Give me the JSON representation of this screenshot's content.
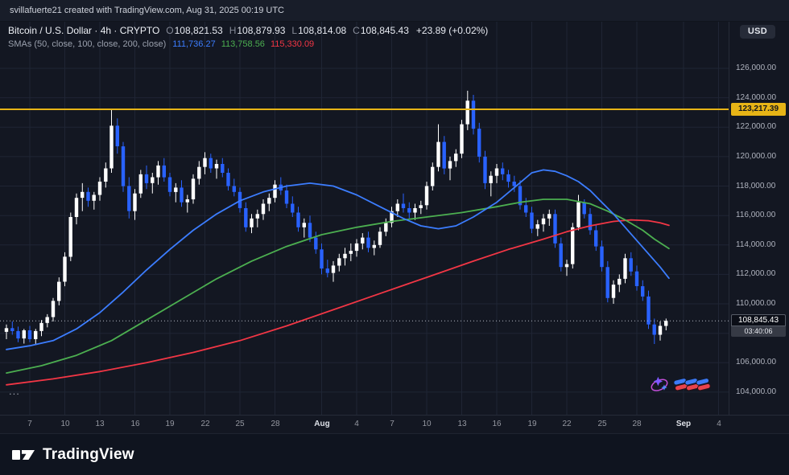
{
  "attribution": {
    "text": "svillafuerte21 created with TradingView.com, Aug 31, 2025 00:19 UTC"
  },
  "symbol_bar": {
    "title": "Bitcoin / U.S. Dollar · 4h · CRYPTO",
    "o_label": "O",
    "o_value": "108,821.53",
    "h_label": "H",
    "h_value": "108,879.93",
    "l_label": "L",
    "l_value": "108,814.08",
    "c_label": "C",
    "c_value": "108,845.43",
    "change": "+23.89 (+0.02%)",
    "currency_button": "USD"
  },
  "indicator_bar": {
    "label": "SMAs (50, close, 100, close, 200, close)",
    "sma50_value": "111,736.27",
    "sma100_value": "113,758.56",
    "sma200_value": "115,330.09"
  },
  "price_line": {
    "value": 123217.39,
    "label": "123,217.39",
    "color": "#e7b416"
  },
  "last_price": {
    "value": 108845.43,
    "label": "108,845.43",
    "countdown": "03:40:06"
  },
  "price_scale": {
    "grid_values": [
      126000,
      124000,
      122000,
      120000,
      118000,
      116000,
      114000,
      112000,
      110000,
      108000,
      106000,
      104000
    ],
    "labels": [
      {
        "text": "126,000.00",
        "value": 126000
      },
      {
        "text": "124,000.00",
        "value": 124000
      },
      {
        "text": "122,000.00",
        "value": 122000
      },
      {
        "text": "120,000.00",
        "value": 120000
      },
      {
        "text": "118,000.00",
        "value": 118000
      },
      {
        "text": "116,000.00",
        "value": 116000
      },
      {
        "text": "114,000.00",
        "value": 114000
      },
      {
        "text": "112,000.00",
        "value": 112000
      },
      {
        "text": "110,000.00",
        "value": 110000
      },
      {
        "text": "106,000.00",
        "value": 106000
      },
      {
        "text": "104,000.00",
        "value": 104000
      }
    ]
  },
  "time_scale": {
    "ticks": [
      {
        "label": "7",
        "idx": 4,
        "major": false
      },
      {
        "label": "10",
        "idx": 10,
        "major": false
      },
      {
        "label": "13",
        "idx": 16,
        "major": false
      },
      {
        "label": "16",
        "idx": 22,
        "major": false
      },
      {
        "label": "19",
        "idx": 28,
        "major": false
      },
      {
        "label": "22",
        "idx": 34,
        "major": false
      },
      {
        "label": "25",
        "idx": 40,
        "major": false
      },
      {
        "label": "28",
        "idx": 46,
        "major": false
      },
      {
        "label": "Aug",
        "idx": 54,
        "major": true
      },
      {
        "label": "4",
        "idx": 60,
        "major": false
      },
      {
        "label": "7",
        "idx": 66,
        "major": false
      },
      {
        "label": "10",
        "idx": 72,
        "major": false
      },
      {
        "label": "13",
        "idx": 78,
        "major": false
      },
      {
        "label": "16",
        "idx": 84,
        "major": false
      },
      {
        "label": "19",
        "idx": 90,
        "major": false
      },
      {
        "label": "22",
        "idx": 96,
        "major": false
      },
      {
        "label": "25",
        "idx": 102,
        "major": false
      },
      {
        "label": "28",
        "idx": 108,
        "major": false
      },
      {
        "label": "Sep",
        "idx": 116,
        "major": true
      },
      {
        "label": "4",
        "idx": 122,
        "major": false
      }
    ]
  },
  "misc": {
    "ellipsis": "...",
    "logo_text": "TradingView"
  },
  "chart_data": {
    "type": "candlestick",
    "symbol": "Bitcoin / U.S. Dollar (CRYPTO)",
    "interval": "4h",
    "note": "OHLC estimated from chart, sampled at 12h resolution, Jul 5 00:00 to Aug 31 00:00 2025 UTC",
    "y_domain": [
      102400,
      129100
    ],
    "key_levels": {
      "alert_line": 123217.39,
      "all_time_high_wick": 124474,
      "last_close": 108845.43,
      "period_low_wick": 107270
    },
    "colors": {
      "up": "#ffffff",
      "down": "#2962ff"
    },
    "candles": [
      [
        108100,
        108600,
        107600,
        108350
      ],
      [
        108350,
        108800,
        107900,
        108150
      ],
      [
        108150,
        108450,
        107400,
        107650
      ],
      [
        107650,
        108300,
        107300,
        108200
      ],
      [
        108200,
        108500,
        107400,
        107600
      ],
      [
        107600,
        108300,
        107250,
        108150
      ],
      [
        108150,
        108900,
        107800,
        108700
      ],
      [
        108700,
        109300,
        108400,
        109100
      ],
      [
        109100,
        110400,
        108800,
        110200
      ],
      [
        110200,
        111800,
        109900,
        111500
      ],
      [
        111500,
        113500,
        111200,
        113200
      ],
      [
        113200,
        116200,
        112900,
        115900
      ],
      [
        115900,
        117500,
        115400,
        117200
      ],
      [
        117200,
        118200,
        116300,
        117600
      ],
      [
        117600,
        117900,
        116600,
        117000
      ],
      [
        117000,
        117600,
        116400,
        117400
      ],
      [
        117400,
        118600,
        117000,
        118300
      ],
      [
        118300,
        119600,
        117900,
        119200
      ],
      [
        119200,
        123217,
        118900,
        122100
      ],
      [
        122100,
        122600,
        120200,
        120700
      ],
      [
        120700,
        121000,
        117600,
        118000
      ],
      [
        118000,
        118600,
        115800,
        116300
      ],
      [
        116300,
        117800,
        115700,
        117500
      ],
      [
        117500,
        119100,
        117200,
        118800
      ],
      [
        118800,
        119400,
        117800,
        118200
      ],
      [
        118200,
        118900,
        117500,
        118600
      ],
      [
        118600,
        119700,
        118100,
        119400
      ],
      [
        119400,
        119900,
        118300,
        118600
      ],
      [
        118600,
        118900,
        117300,
        117600
      ],
      [
        117600,
        118200,
        116900,
        117900
      ],
      [
        117900,
        118400,
        116600,
        116900
      ],
      [
        116900,
        117400,
        116200,
        117100
      ],
      [
        117100,
        118800,
        116800,
        118500
      ],
      [
        118500,
        119700,
        118100,
        119300
      ],
      [
        119300,
        120300,
        118800,
        119900
      ],
      [
        119900,
        120200,
        118900,
        119200
      ],
      [
        119200,
        119800,
        118500,
        119500
      ],
      [
        119500,
        119900,
        118600,
        118900
      ],
      [
        118900,
        119200,
        117700,
        118000
      ],
      [
        118000,
        118500,
        117300,
        117600
      ],
      [
        117600,
        117900,
        116200,
        116500
      ],
      [
        116500,
        116900,
        114900,
        115200
      ],
      [
        115200,
        116100,
        114800,
        115800
      ],
      [
        115800,
        116400,
        115200,
        116100
      ],
      [
        116100,
        117100,
        115700,
        116800
      ],
      [
        116800,
        117500,
        116300,
        117200
      ],
      [
        117200,
        118400,
        116900,
        118100
      ],
      [
        118100,
        118600,
        117400,
        117700
      ],
      [
        117700,
        118100,
        116500,
        116800
      ],
      [
        116800,
        117300,
        115900,
        116200
      ],
      [
        116200,
        116600,
        114900,
        115200
      ],
      [
        115200,
        115800,
        114500,
        115500
      ],
      [
        115500,
        116000,
        114200,
        114500
      ],
      [
        114500,
        114900,
        113400,
        113700
      ],
      [
        113700,
        114100,
        112000,
        112400
      ],
      [
        112400,
        113000,
        111800,
        112100
      ],
      [
        112100,
        112900,
        111500,
        112600
      ],
      [
        112600,
        113400,
        112200,
        113100
      ],
      [
        113100,
        113800,
        112600,
        113400
      ],
      [
        113400,
        114100,
        112900,
        113600
      ],
      [
        113600,
        114400,
        113200,
        114100
      ],
      [
        114100,
        114800,
        113700,
        114500
      ],
      [
        114500,
        114900,
        113500,
        113800
      ],
      [
        113800,
        114300,
        113300,
        114000
      ],
      [
        114000,
        115200,
        113800,
        114900
      ],
      [
        114900,
        115800,
        114600,
        115500
      ],
      [
        115500,
        116600,
        115200,
        116300
      ],
      [
        116300,
        117100,
        115900,
        116800
      ],
      [
        116800,
        117500,
        116200,
        116500
      ],
      [
        116500,
        116900,
        115800,
        116200
      ],
      [
        116200,
        116800,
        115700,
        116500
      ],
      [
        116500,
        117000,
        116100,
        116700
      ],
      [
        116700,
        118300,
        116400,
        118000
      ],
      [
        118000,
        119600,
        117700,
        119300
      ],
      [
        119300,
        122200,
        119000,
        121000
      ],
      [
        121000,
        121400,
        118800,
        119200
      ],
      [
        119200,
        120000,
        118400,
        119700
      ],
      [
        119700,
        120500,
        119300,
        120200
      ],
      [
        120200,
        122500,
        119900,
        122200
      ],
      [
        122200,
        124474,
        121800,
        123800
      ],
      [
        123800,
        124200,
        121500,
        121900
      ],
      [
        121900,
        122300,
        119600,
        120000
      ],
      [
        120000,
        120400,
        117800,
        118200
      ],
      [
        118200,
        119000,
        117300,
        118700
      ],
      [
        118700,
        119500,
        118200,
        119200
      ],
      [
        119200,
        119600,
        118400,
        118800
      ],
      [
        118800,
        119100,
        117900,
        118300
      ],
      [
        118300,
        118700,
        117600,
        118000
      ],
      [
        118000,
        118400,
        116400,
        116700
      ],
      [
        116700,
        117200,
        115900,
        116200
      ],
      [
        116200,
        116600,
        114800,
        115100
      ],
      [
        115100,
        115700,
        114600,
        115400
      ],
      [
        115400,
        116100,
        114900,
        115800
      ],
      [
        115800,
        116400,
        115300,
        116100
      ],
      [
        116100,
        116400,
        113800,
        114100
      ],
      [
        114100,
        114500,
        112200,
        112500
      ],
      [
        112500,
        113000,
        111900,
        112700
      ],
      [
        112700,
        115500,
        112400,
        115200
      ],
      [
        115200,
        117400,
        115000,
        116900
      ],
      [
        116900,
        117100,
        115800,
        116100
      ],
      [
        116100,
        116500,
        114700,
        115000
      ],
      [
        115000,
        115400,
        113600,
        113900
      ],
      [
        113900,
        114300,
        112200,
        112500
      ],
      [
        112500,
        112900,
        110100,
        110400
      ],
      [
        110400,
        111600,
        110000,
        111300
      ],
      [
        111300,
        112000,
        110800,
        111700
      ],
      [
        111700,
        113400,
        111400,
        113100
      ],
      [
        113100,
        113500,
        111900,
        112200
      ],
      [
        112200,
        112600,
        110900,
        111200
      ],
      [
        111200,
        111600,
        110200,
        110500
      ],
      [
        110500,
        110900,
        108300,
        108600
      ],
      [
        108600,
        109000,
        107270,
        107900
      ],
      [
        107900,
        108800,
        107500,
        108500
      ],
      [
        108500,
        109000,
        108200,
        108845
      ]
    ],
    "sma50": {
      "name": "SMA 50 close",
      "color": "#3c7dff",
      "last_value": 111736.27,
      "points": [
        [
          0,
          106900
        ],
        [
          4,
          107150
        ],
        [
          8,
          107500
        ],
        [
          12,
          108300
        ],
        [
          16,
          109400
        ],
        [
          20,
          110800
        ],
        [
          24,
          112300
        ],
        [
          28,
          113700
        ],
        [
          32,
          115000
        ],
        [
          36,
          116100
        ],
        [
          40,
          117000
        ],
        [
          44,
          117600
        ],
        [
          48,
          118000
        ],
        [
          52,
          118200
        ],
        [
          56,
          118000
        ],
        [
          60,
          117400
        ],
        [
          64,
          116600
        ],
        [
          68,
          115800
        ],
        [
          71,
          115300
        ],
        [
          74,
          115100
        ],
        [
          77,
          115300
        ],
        [
          80,
          115900
        ],
        [
          84,
          116900
        ],
        [
          87,
          117900
        ],
        [
          90,
          118900
        ],
        [
          92,
          119100
        ],
        [
          94,
          119000
        ],
        [
          96,
          118700
        ],
        [
          98,
          118300
        ],
        [
          100,
          117700
        ],
        [
          102,
          116900
        ],
        [
          104,
          116100
        ],
        [
          106,
          115200
        ],
        [
          108,
          114300
        ],
        [
          110,
          113400
        ],
        [
          112,
          112500
        ],
        [
          113.5,
          111736
        ]
      ]
    },
    "sma100": {
      "name": "SMA 100 close",
      "color": "#4caf50",
      "last_value": 113758.56,
      "points": [
        [
          0,
          105300
        ],
        [
          6,
          105800
        ],
        [
          12,
          106500
        ],
        [
          18,
          107500
        ],
        [
          24,
          108900
        ],
        [
          30,
          110300
        ],
        [
          36,
          111700
        ],
        [
          42,
          112900
        ],
        [
          48,
          113900
        ],
        [
          54,
          114700
        ],
        [
          60,
          115200
        ],
        [
          66,
          115600
        ],
        [
          72,
          115900
        ],
        [
          78,
          116200
        ],
        [
          84,
          116600
        ],
        [
          88,
          116900
        ],
        [
          92,
          117100
        ],
        [
          96,
          117100
        ],
        [
          100,
          116800
        ],
        [
          103,
          116300
        ],
        [
          106,
          115700
        ],
        [
          109,
          115000
        ],
        [
          111,
          114400
        ],
        [
          113.5,
          113759
        ]
      ]
    },
    "sma200": {
      "name": "SMA 200 close",
      "color": "#f23645",
      "last_value": 115330.09,
      "points": [
        [
          0,
          104500
        ],
        [
          8,
          104900
        ],
        [
          16,
          105400
        ],
        [
          24,
          106000
        ],
        [
          32,
          106700
        ],
        [
          40,
          107500
        ],
        [
          48,
          108500
        ],
        [
          56,
          109600
        ],
        [
          64,
          110700
        ],
        [
          72,
          111800
        ],
        [
          80,
          112900
        ],
        [
          86,
          113700
        ],
        [
          92,
          114400
        ],
        [
          96,
          114900
        ],
        [
          100,
          115300
        ],
        [
          104,
          115600
        ],
        [
          107,
          115700
        ],
        [
          110,
          115650
        ],
        [
          112,
          115500
        ],
        [
          113.5,
          115330
        ]
      ]
    }
  }
}
